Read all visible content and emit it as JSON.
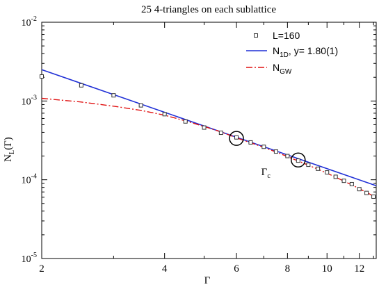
{
  "chart_data": {
    "type": "line",
    "title": "25  4-triangles on each sublattice",
    "xlabel": "Γ",
    "ylabel": "N",
    "ylabel_sub": "L",
    "ylabel_suffix": "(Γ)",
    "xscale": "log",
    "yscale": "log",
    "xlim": [
      2,
      13.2
    ],
    "ylim": [
      1e-05,
      0.01
    ],
    "x_ticks": [
      2,
      4,
      6,
      8,
      10,
      12
    ],
    "x_tick_labels": [
      "2",
      "4",
      "6",
      "8",
      "10",
      "12"
    ],
    "y_ticks": [
      1e-05,
      0.0001,
      0.001,
      0.01
    ],
    "y_tick_labels": [
      {
        "base": "10",
        "exp": "-5"
      },
      {
        "base": "10",
        "exp": "-4"
      },
      {
        "base": "10",
        "exp": "-3"
      },
      {
        "base": "10",
        "exp": "-2"
      }
    ],
    "grid": false,
    "legend_position": "top-right",
    "series": [
      {
        "name": "L=160",
        "style": "markers",
        "marker": "square",
        "color": "#333333",
        "x": [
          2.0,
          2.5,
          3.0,
          3.5,
          4.0,
          4.5,
          5.0,
          5.5,
          6.0,
          6.5,
          7.0,
          7.5,
          8.0,
          8.5,
          9.0,
          9.5,
          10.0,
          10.5,
          11.0,
          11.5,
          12.0,
          12.5,
          13.0
        ],
        "y": [
          0.00205,
          0.00158,
          0.00118,
          0.00088,
          0.00068,
          0.00055,
          0.00046,
          0.000395,
          0.000345,
          0.000298,
          0.000262,
          0.000228,
          0.0002,
          0.000175,
          0.000155,
          0.000138,
          0.000124,
          0.000109,
          9.7e-05,
          8.8e-05,
          7.6e-05,
          6.8e-05,
          6.1e-05
        ]
      },
      {
        "name": "N",
        "name_sub": "1D",
        "name_suffix": ", y= 1.80(1)",
        "style": "solid",
        "color": "#1f2fd6",
        "x": [
          2.0,
          13.2
        ],
        "y": [
          0.0025,
          8.4e-05
        ]
      },
      {
        "name": "N",
        "name_sub": "GW",
        "style": "dashdot",
        "color": "#e01010",
        "x": [
          2.0,
          2.5,
          3.0,
          3.5,
          4.0,
          4.5,
          5.0,
          5.5,
          6.0,
          6.5,
          7.0,
          7.5,
          8.0,
          8.5,
          9.0,
          9.5,
          10.0,
          10.5,
          11.0,
          11.5,
          12.0,
          12.5,
          13.0
        ],
        "y": [
          0.00108,
          0.00097,
          0.00086,
          0.00076,
          0.00066,
          0.00056,
          0.000475,
          0.000405,
          0.00034,
          0.000295,
          0.000258,
          0.000225,
          0.000197,
          0.000173,
          0.000153,
          0.000136,
          0.000121,
          0.000108,
          9.6e-05,
          8.6e-05,
          7.7e-05,
          6.9e-05,
          6.2e-05
        ]
      }
    ],
    "annotations": [
      {
        "type": "circle",
        "x": 6.0,
        "y": 0.000335
      },
      {
        "type": "circle",
        "x": 8.5,
        "y": 0.000178
      },
      {
        "type": "text",
        "text": "Γ",
        "sub": "c",
        "x": 6.9,
        "y": 0.000115
      }
    ]
  }
}
